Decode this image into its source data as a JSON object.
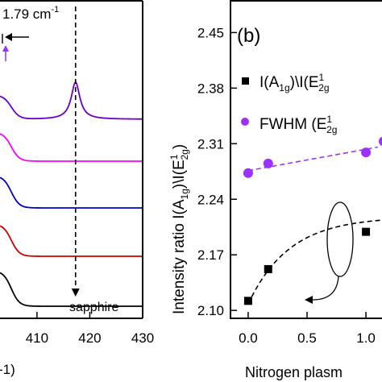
{
  "chart_data": [
    {
      "panel": "left",
      "type": "line",
      "xlabel_fragment": "-1)",
      "x_ticks": [
        410,
        420,
        430
      ],
      "xlim": [
        403,
        430
      ],
      "annotations": {
        "shift": "1.79 cm",
        "shift_exp": "-1",
        "sapphire": "sapphire"
      },
      "series_colors": [
        "#000000",
        "#cc0000",
        "#0000cc",
        "#ff00ff",
        "#6600cc"
      ],
      "curves": [
        {
          "color": "#000000",
          "baseline": 0.0
        },
        {
          "color": "#cc0000",
          "baseline": 1.0
        },
        {
          "color": "#0000cc",
          "baseline": 2.0
        },
        {
          "color": "#ff00ff",
          "baseline": 3.0
        },
        {
          "color": "#6600cc",
          "baseline": 4.0
        }
      ],
      "sapphire_peak_x": 417.3
    },
    {
      "panel": "right",
      "panel_label": "(b)",
      "type": "scatter",
      "xlabel": "Nitrogen plasm",
      "ylabel_main": "Intensity ratio I(A",
      "x_ticks": [
        0.0,
        0.5,
        1.0
      ],
      "x_tick_labels": [
        "0.0",
        "0.5",
        "1.0"
      ],
      "xlim": [
        -0.15,
        1.15
      ],
      "y_ticks": [
        2.1,
        2.17,
        2.24,
        2.31,
        2.38,
        2.45
      ],
      "y_tick_labels": [
        "2.10",
        "2.17",
        "2.24",
        "2.31",
        "2.38",
        "2.45"
      ],
      "ylim": [
        2.09,
        2.49
      ],
      "series": [
        {
          "name": "I(A1g)\\I(E12g)",
          "marker": "square",
          "color": "#000000",
          "x": [
            0.0,
            0.17,
            1.0
          ],
          "y": [
            2.112,
            2.152,
            2.199
          ]
        },
        {
          "name": "FWHM (E12g)",
          "marker": "circle",
          "color": "#9b30ff",
          "x": [
            0.0,
            0.17,
            1.0,
            1.15
          ],
          "y": [
            2.273,
            2.285,
            2.299,
            2.313
          ]
        }
      ],
      "legend": {
        "black_label": "I(A",
        "purple_label": "FWHM (E"
      }
    }
  ]
}
